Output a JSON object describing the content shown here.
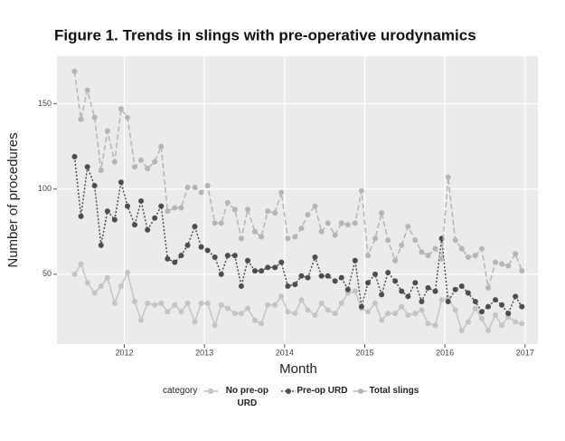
{
  "chart_data": {
    "type": "line",
    "title": "Figure 1. Trends in slings with pre-operative urodynamics",
    "x_label": "Month",
    "y_label": "Number of procedures",
    "legend_title": "category",
    "legend_position": "bottom",
    "grid": true,
    "x": [
      2011.38,
      2011.46,
      2011.54,
      2011.63,
      2011.71,
      2011.79,
      2011.88,
      2011.96,
      2012.04,
      2012.13,
      2012.21,
      2012.29,
      2012.38,
      2012.46,
      2012.54,
      2012.63,
      2012.71,
      2012.79,
      2012.88,
      2012.96,
      2013.04,
      2013.13,
      2013.21,
      2013.29,
      2013.38,
      2013.46,
      2013.54,
      2013.63,
      2013.71,
      2013.79,
      2013.88,
      2013.96,
      2014.04,
      2014.13,
      2014.21,
      2014.29,
      2014.38,
      2014.46,
      2014.54,
      2014.63,
      2014.71,
      2014.79,
      2014.88,
      2014.96,
      2015.04,
      2015.13,
      2015.21,
      2015.29,
      2015.38,
      2015.46,
      2015.54,
      2015.63,
      2015.71,
      2015.79,
      2015.88,
      2015.96,
      2016.04,
      2016.13,
      2016.21,
      2016.29,
      2016.38,
      2016.46,
      2016.54,
      2016.63,
      2016.71,
      2016.79,
      2016.88,
      2016.96
    ],
    "series": [
      {
        "name": "No pre-op URD",
        "color": "#c4c4c4",
        "dash": "solid",
        "values": [
          50,
          56,
          45,
          39,
          43,
          48,
          33,
          43,
          51,
          34,
          23,
          33,
          32,
          33,
          28,
          32,
          28,
          33,
          22,
          33,
          33,
          20,
          32,
          30,
          27,
          27,
          30,
          23,
          21,
          32,
          32,
          37,
          28,
          27,
          35,
          29,
          26,
          33,
          29,
          27,
          33,
          39,
          40,
          30,
          28,
          33,
          23,
          27,
          27,
          31,
          26,
          27,
          29,
          21,
          20,
          35,
          36,
          29,
          17,
          22,
          30,
          24,
          17,
          26,
          20,
          25,
          22,
          21
        ]
      },
      {
        "name": "Pre-op URD",
        "color": "#4d4d4d",
        "dash": "dotted",
        "values": [
          119,
          84,
          113,
          102,
          67,
          87,
          82,
          104,
          90,
          79,
          93,
          76,
          83,
          90,
          59,
          57,
          61,
          67,
          78,
          66,
          64,
          60,
          50,
          61,
          61,
          43,
          58,
          52,
          52,
          54,
          54,
          57,
          43,
          44,
          49,
          48,
          60,
          49,
          49,
          46,
          48,
          41,
          58,
          31,
          45,
          50,
          38,
          51,
          46,
          40,
          37,
          45,
          34,
          42,
          40,
          71,
          34,
          41,
          43,
          39,
          34,
          28,
          31,
          35,
          32,
          27,
          37,
          31
        ]
      },
      {
        "name": "Total slings",
        "color": "#b5b5b5",
        "dash": "dashed",
        "values": [
          169,
          141,
          158,
          142,
          111,
          134,
          116,
          147,
          142,
          113,
          117,
          112,
          116,
          125,
          87,
          89,
          89,
          101,
          101,
          98,
          102,
          80,
          80,
          92,
          88,
          71,
          88,
          75,
          72,
          87,
          86,
          98,
          71,
          72,
          77,
          85,
          90,
          75,
          80,
          73,
          80,
          79,
          80,
          99,
          61,
          71,
          86,
          70,
          58,
          67,
          78,
          70,
          63,
          61,
          65,
          59,
          107,
          70,
          65,
          60,
          61,
          65,
          42,
          57,
          56,
          55,
          62,
          52
        ]
      }
    ],
    "xlim": [
      2011.16,
      2017.16
    ],
    "xticks": [
      2012,
      2013,
      2014,
      2015,
      2016,
      2017
    ],
    "ylim": [
      9,
      178
    ],
    "yticks": [
      50,
      100,
      150
    ]
  }
}
